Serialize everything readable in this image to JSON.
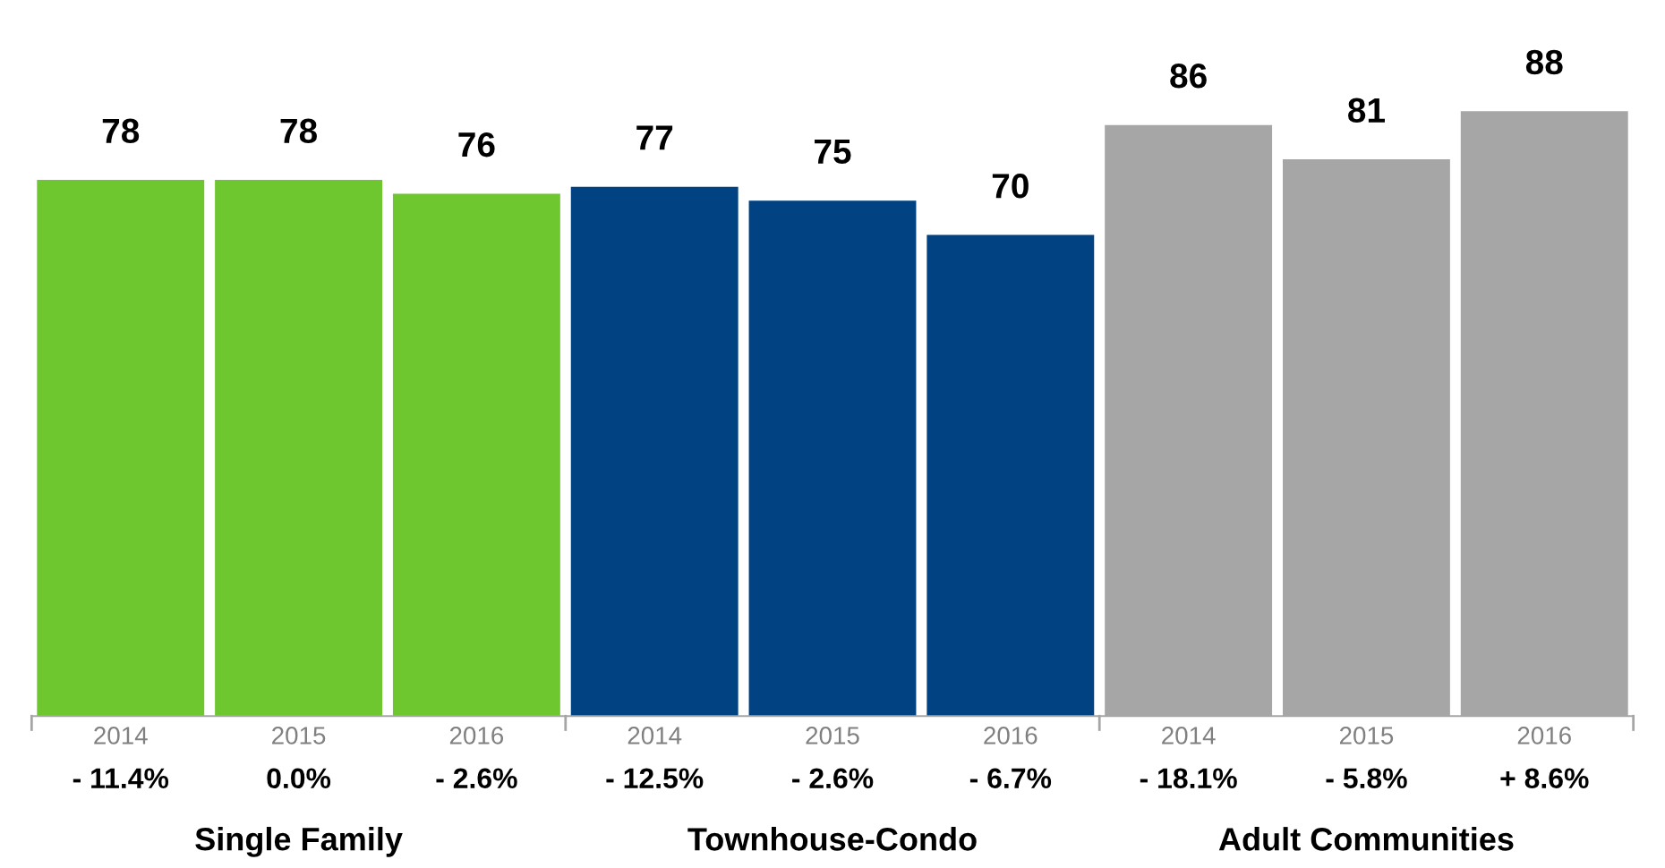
{
  "chart_data": {
    "type": "bar",
    "categories": [
      "2014",
      "2015",
      "2016",
      "2014",
      "2015",
      "2016",
      "2014",
      "2015",
      "2016"
    ],
    "values": [
      78,
      78,
      76,
      77,
      75,
      70,
      86,
      81,
      88
    ],
    "colors": [
      "#6ec72e",
      "#6ec72e",
      "#6ec72e",
      "#004282",
      "#004282",
      "#004282",
      "#a6a6a6",
      "#a6a6a6",
      "#a6a6a6"
    ],
    "data_labels": true,
    "grid": false,
    "legend": false,
    "annotations": [
      "- 11.4%",
      "0.0%",
      "- 2.6%",
      "- 12.5%",
      "- 2.6%",
      "- 6.7%",
      "- 18.1%",
      "- 5.8%",
      "+ 8.6%",
      "Single Family",
      "Townhouse-Condo",
      "Adult Communities"
    ]
  }
}
